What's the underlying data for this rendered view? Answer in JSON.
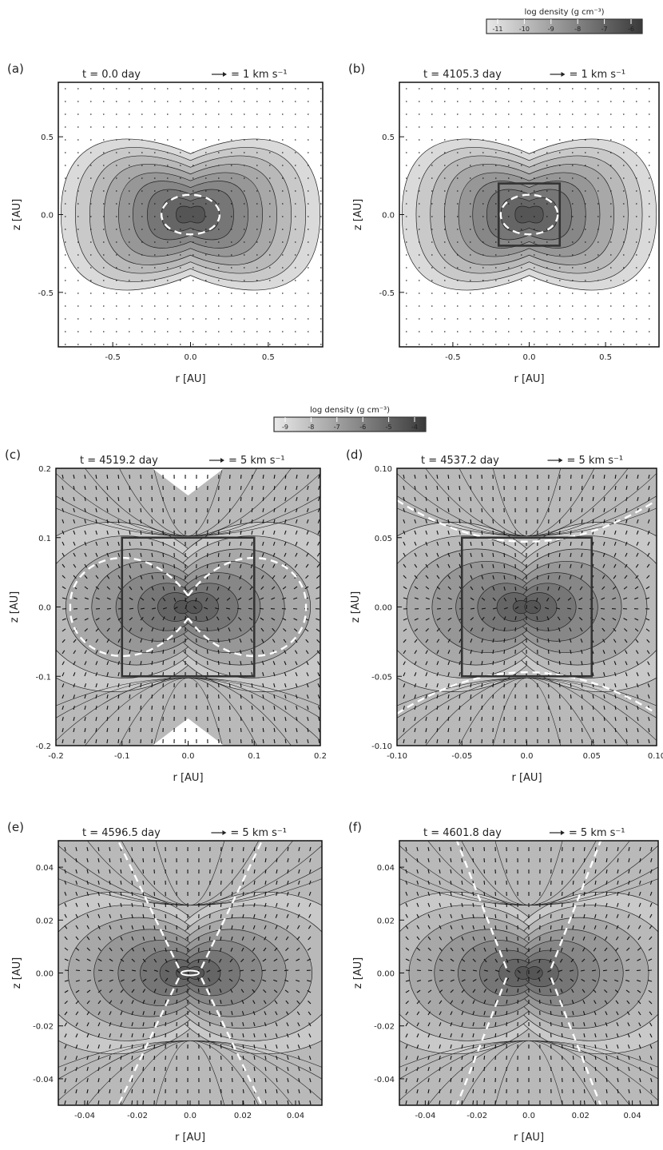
{
  "colorbars": [
    {
      "title": "log density (g cm⁻³)",
      "ticks": [
        "-11",
        "-10",
        "-9",
        "-8",
        "-7",
        "-6"
      ]
    },
    {
      "title": "log density (g cm⁻³)",
      "ticks": [
        "-9",
        "-8",
        "-7",
        "-6",
        "-5",
        "-4"
      ]
    }
  ],
  "chart_data": [
    {
      "panel": "(a)",
      "type": "heatmap",
      "time": "t = 0.0 day",
      "arrow_scale": "1 km s⁻¹",
      "xlabel": "r [AU]",
      "ylabel": "z [AU]",
      "xlim": [
        -0.85,
        0.85
      ],
      "ylim": [
        -0.85,
        0.85
      ],
      "xticks": [
        -0.5,
        0.0,
        0.5
      ],
      "xticklabels": [
        "-0.5",
        "0.0",
        "0.5"
      ],
      "yticks": [
        -0.5,
        0.0,
        0.5
      ],
      "yticklabels": [
        "-0.5",
        "0.0",
        "0.5"
      ],
      "shape": "peanut",
      "density_range": [
        -11,
        -6
      ],
      "boundary_dashes": "ring",
      "zoom_box": null
    },
    {
      "panel": "(b)",
      "type": "heatmap",
      "time": "t = 4105.3 day",
      "arrow_scale": "1 km s⁻¹",
      "xlabel": "r [AU]",
      "ylabel": "z [AU]",
      "xlim": [
        -0.85,
        0.85
      ],
      "ylim": [
        -0.85,
        0.85
      ],
      "xticks": [
        -0.5,
        0.0,
        0.5
      ],
      "xticklabels": [
        "-0.5",
        "0.0",
        "0.5"
      ],
      "yticks": [
        -0.5,
        0.0,
        0.5
      ],
      "yticklabels": [
        "-0.5",
        "0.0",
        "0.5"
      ],
      "shape": "peanut",
      "density_range": [
        -11,
        -6
      ],
      "boundary_dashes": "ring",
      "zoom_box": [
        -0.2,
        0.2
      ]
    },
    {
      "panel": "(c)",
      "type": "heatmap",
      "time": "t = 4519.2 day",
      "arrow_scale": "5 km s⁻¹",
      "xlabel": "r [AU]",
      "ylabel": "z [AU]",
      "xlim": [
        -0.2,
        0.2
      ],
      "ylim": [
        -0.2,
        0.2
      ],
      "xticks": [
        -0.2,
        -0.1,
        0.0,
        0.1,
        0.2
      ],
      "xticklabels": [
        "-0.2",
        "-0.1",
        "0.0",
        "0.1",
        "0.2"
      ],
      "yticks": [
        -0.2,
        -0.1,
        0.0,
        0.1,
        0.2
      ],
      "yticklabels": [
        "-0.2",
        "-0.1",
        "0.0",
        "0.1",
        "0.2"
      ],
      "shape": "field",
      "density_range": [
        -9,
        -4
      ],
      "boundary_dashes": "lobes",
      "zoom_box": [
        -0.1,
        0.1
      ]
    },
    {
      "panel": "(d)",
      "type": "heatmap",
      "time": "t = 4537.2 day",
      "arrow_scale": "5 km s⁻¹",
      "xlabel": "r [AU]",
      "ylabel": "z [AU]",
      "xlim": [
        -0.1,
        0.1
      ],
      "ylim": [
        -0.1,
        0.1
      ],
      "xticks": [
        -0.1,
        -0.05,
        0.0,
        0.05,
        0.1
      ],
      "xticklabels": [
        "-0.10",
        "-0.05",
        "0.0",
        "0.05",
        "0.10"
      ],
      "yticks": [
        -0.1,
        -0.05,
        0.0,
        0.05,
        0.1
      ],
      "yticklabels": [
        "-0.10",
        "-0.05",
        "0.00",
        "0.05",
        "0.10"
      ],
      "shape": "field",
      "density_range": [
        -9,
        -4
      ],
      "boundary_dashes": "hyperbola",
      "zoom_box": [
        -0.05,
        0.05
      ]
    },
    {
      "panel": "(e)",
      "type": "heatmap",
      "time": "t = 4596.5 day",
      "arrow_scale": "5 km s⁻¹",
      "xlabel": "r [AU]",
      "ylabel": "z [AU]",
      "xlim": [
        -0.05,
        0.05
      ],
      "ylim": [
        -0.05,
        0.05
      ],
      "xticks": [
        -0.04,
        -0.02,
        0.0,
        0.02,
        0.04
      ],
      "xticklabels": [
        "-0.04",
        "-0.02",
        "0.0",
        "0.02",
        "0.04"
      ],
      "yticks": [
        -0.04,
        -0.02,
        0.0,
        0.02,
        0.04
      ],
      "yticklabels": [
        "-0.04",
        "-0.02",
        "0.00",
        "0.02",
        "0.04"
      ],
      "shape": "field",
      "density_range": [
        -9,
        -4
      ],
      "boundary_dashes": "cone",
      "zoom_box": null
    },
    {
      "panel": "(f)",
      "type": "heatmap",
      "time": "t = 4601.8 day",
      "arrow_scale": "5 km s⁻¹",
      "xlabel": "r [AU]",
      "ylabel": "z [AU]",
      "xlim": [
        -0.05,
        0.05
      ],
      "ylim": [
        -0.05,
        0.05
      ],
      "xticks": [
        -0.04,
        -0.02,
        0.0,
        0.02,
        0.04
      ],
      "xticklabels": [
        "-0.04",
        "-0.02",
        "0.0",
        "0.02",
        "0.04"
      ],
      "yticks": [
        -0.04,
        -0.02,
        0.0,
        0.02,
        0.04
      ],
      "yticklabels": [
        "-0.04",
        "-0.02",
        "0.00",
        "0.02",
        "0.04"
      ],
      "shape": "field",
      "density_range": [
        -9,
        -4
      ],
      "boundary_dashes": "cone",
      "zoom_box": null
    }
  ]
}
